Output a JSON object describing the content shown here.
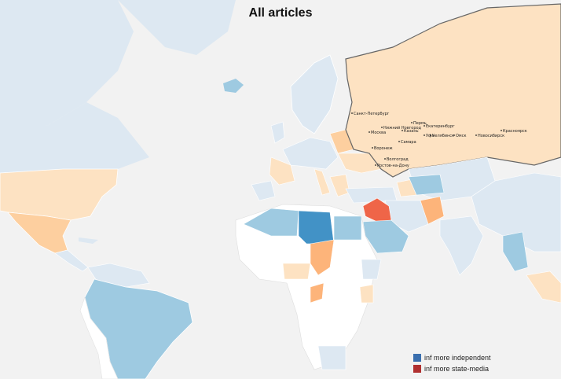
{
  "title": "All articles",
  "legend": {
    "items": [
      {
        "label": "inf more independent",
        "color": "#3a6fae"
      },
      {
        "label": "inf more state-media",
        "color": "#b03030"
      }
    ]
  },
  "colors": {
    "ocean": "#f2f2f2",
    "no_data_land": "#dde8f2",
    "white_land": "#ffffff",
    "light_blue": "#9ecae1",
    "mid_blue": "#4292c6",
    "light_orange": "#fde2c2",
    "mid_orange": "#fdb47a",
    "dark_orange": "#ef6548",
    "russia_border": "#666666"
  },
  "cities": [
    "Санкт-Петербург",
    "Пермь",
    "Екатеринбург",
    "Нижний Новгород",
    "Казань",
    "Москва",
    "Уфа",
    "Челябинск",
    "Омск",
    "Новосибирск",
    "Красноярск",
    "Самара",
    "Воронеж",
    "Волгоград",
    "Ростов-на-Дону"
  ]
}
